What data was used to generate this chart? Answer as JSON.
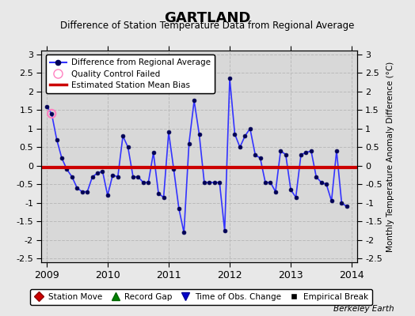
{
  "title": "GARTLAND",
  "subtitle": "Difference of Station Temperature Data from Regional Average",
  "ylabel": "Monthly Temperature Anomaly Difference (°C)",
  "watermark": "Berkeley Earth",
  "xlim": [
    2008.917,
    2014.083
  ],
  "ylim": [
    -2.6,
    3.1
  ],
  "bias": -0.05,
  "background_color": "#e8e8e8",
  "plot_bg_color": "#d8d8d8",
  "grid_color": "#bbbbbb",
  "times": [
    2009.0,
    2009.083,
    2009.167,
    2009.25,
    2009.333,
    2009.417,
    2009.5,
    2009.583,
    2009.667,
    2009.75,
    2009.833,
    2009.917,
    2010.0,
    2010.083,
    2010.167,
    2010.25,
    2010.333,
    2010.417,
    2010.5,
    2010.583,
    2010.667,
    2010.75,
    2010.833,
    2010.917,
    2011.0,
    2011.083,
    2011.167,
    2011.25,
    2011.333,
    2011.417,
    2011.5,
    2011.583,
    2011.667,
    2011.75,
    2011.833,
    2011.917,
    2012.0,
    2012.083,
    2012.167,
    2012.25,
    2012.333,
    2012.417,
    2012.5,
    2012.583,
    2012.667,
    2012.75,
    2012.833,
    2012.917,
    2013.0,
    2013.083,
    2013.167,
    2013.25,
    2013.333,
    2013.417,
    2013.5,
    2013.583,
    2013.667,
    2013.75,
    2013.833,
    2013.917
  ],
  "values": [
    1.6,
    1.4,
    0.7,
    0.2,
    -0.1,
    -0.3,
    -0.6,
    -0.7,
    -0.7,
    -0.3,
    -0.2,
    -0.15,
    -0.8,
    -0.25,
    -0.3,
    0.8,
    0.5,
    -0.3,
    -0.3,
    -0.45,
    -0.45,
    0.35,
    -0.75,
    -0.85,
    0.9,
    -0.1,
    -1.15,
    -1.8,
    0.6,
    1.75,
    0.85,
    -0.45,
    -0.45,
    -0.45,
    -0.45,
    -1.75,
    2.35,
    0.85,
    0.5,
    0.8,
    1.0,
    0.3,
    0.2,
    -0.45,
    -0.45,
    -0.7,
    0.4,
    0.3,
    -0.65,
    -0.85,
    0.3,
    0.35,
    0.4,
    -0.3,
    -0.45,
    -0.5,
    -0.95,
    0.4,
    -1.0,
    -1.1
  ],
  "qc_failed_indices": [
    1
  ],
  "station_move_times": [
    2009.0
  ],
  "station_move_values": [
    -0.05
  ],
  "line_color": "#3333ff",
  "dot_color": "#000055",
  "qc_color": "#ff80c0",
  "bias_color": "#cc0000",
  "xticks": [
    2009,
    2010,
    2011,
    2012,
    2013,
    2014
  ],
  "yticks": [
    -2.5,
    -2,
    -1.5,
    -1,
    -0.5,
    0,
    0.5,
    1,
    1.5,
    2,
    2.5,
    3
  ]
}
